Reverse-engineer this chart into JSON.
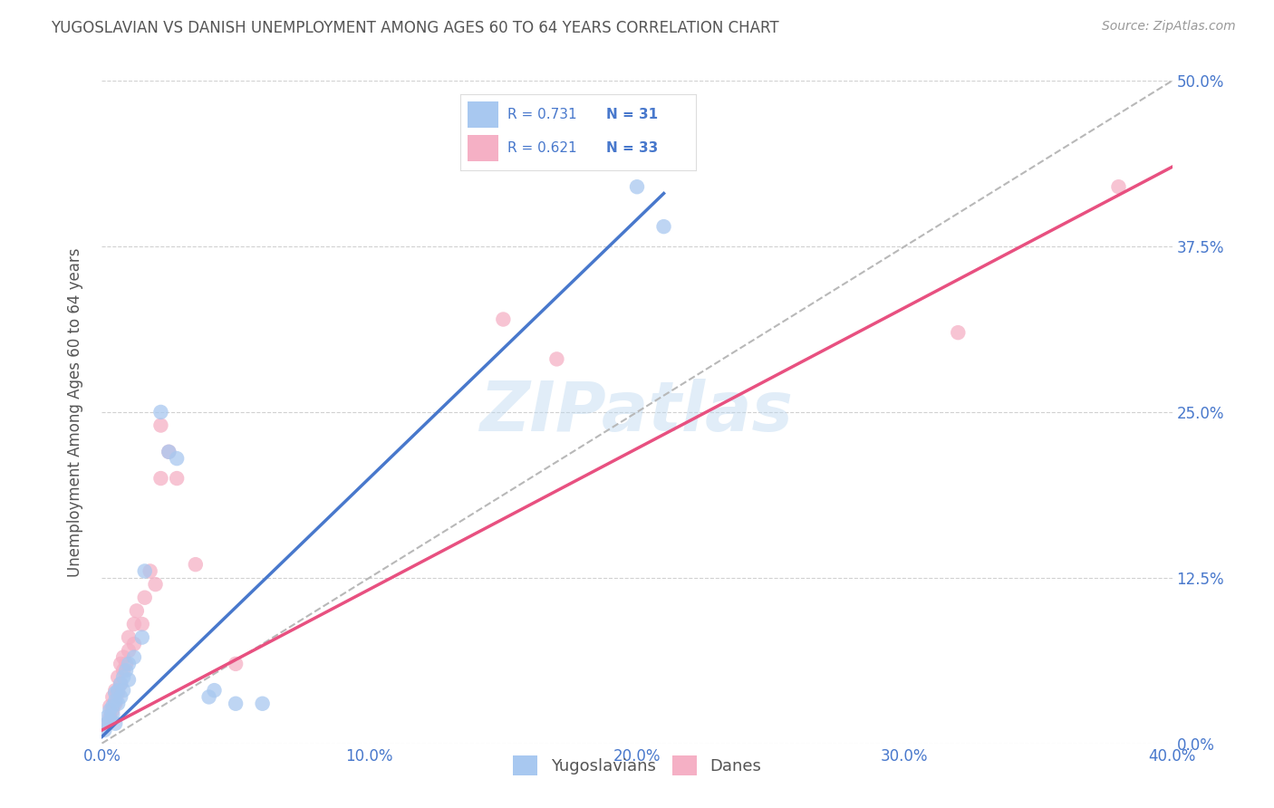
{
  "title": "YUGOSLAVIAN VS DANISH UNEMPLOYMENT AMONG AGES 60 TO 64 YEARS CORRELATION CHART",
  "source": "Source: ZipAtlas.com",
  "ylabel": "Unemployment Among Ages 60 to 64 years",
  "xlim": [
    0.0,
    0.4
  ],
  "ylim": [
    0.0,
    0.5
  ],
  "legend_label1": "Yugoslavians",
  "legend_label2": "Danes",
  "R1": 0.731,
  "N1": 31,
  "R2": 0.621,
  "N2": 33,
  "color_blue": "#a8c8f0",
  "color_pink": "#f5b0c5",
  "line_blue": "#4878cc",
  "line_pink": "#e85080",
  "line_dashed": "#b8b8b8",
  "bg_color": "#ffffff",
  "grid_color": "#cccccc",
  "text_color_blue": "#4878cc",
  "title_color": "#555555",
  "watermark": "ZIPatlas",
  "yug_points": [
    [
      0.001,
      0.01
    ],
    [
      0.002,
      0.015
    ],
    [
      0.002,
      0.02
    ],
    [
      0.003,
      0.018
    ],
    [
      0.003,
      0.025
    ],
    [
      0.004,
      0.022
    ],
    [
      0.004,
      0.028
    ],
    [
      0.005,
      0.015
    ],
    [
      0.005,
      0.032
    ],
    [
      0.005,
      0.038
    ],
    [
      0.006,
      0.03
    ],
    [
      0.006,
      0.04
    ],
    [
      0.007,
      0.035
    ],
    [
      0.007,
      0.045
    ],
    [
      0.008,
      0.04
    ],
    [
      0.008,
      0.05
    ],
    [
      0.009,
      0.055
    ],
    [
      0.01,
      0.048
    ],
    [
      0.01,
      0.06
    ],
    [
      0.012,
      0.065
    ],
    [
      0.015,
      0.08
    ],
    [
      0.016,
      0.13
    ],
    [
      0.022,
      0.25
    ],
    [
      0.025,
      0.22
    ],
    [
      0.028,
      0.215
    ],
    [
      0.04,
      0.035
    ],
    [
      0.042,
      0.04
    ],
    [
      0.05,
      0.03
    ],
    [
      0.06,
      0.03
    ],
    [
      0.2,
      0.42
    ],
    [
      0.21,
      0.39
    ]
  ],
  "dane_points": [
    [
      0.002,
      0.015
    ],
    [
      0.003,
      0.02
    ],
    [
      0.003,
      0.028
    ],
    [
      0.004,
      0.025
    ],
    [
      0.004,
      0.035
    ],
    [
      0.005,
      0.03
    ],
    [
      0.005,
      0.04
    ],
    [
      0.006,
      0.038
    ],
    [
      0.006,
      0.05
    ],
    [
      0.007,
      0.045
    ],
    [
      0.007,
      0.06
    ],
    [
      0.008,
      0.055
    ],
    [
      0.008,
      0.065
    ],
    [
      0.009,
      0.06
    ],
    [
      0.01,
      0.07
    ],
    [
      0.01,
      0.08
    ],
    [
      0.012,
      0.075
    ],
    [
      0.012,
      0.09
    ],
    [
      0.013,
      0.1
    ],
    [
      0.015,
      0.09
    ],
    [
      0.016,
      0.11
    ],
    [
      0.018,
      0.13
    ],
    [
      0.02,
      0.12
    ],
    [
      0.022,
      0.24
    ],
    [
      0.022,
      0.2
    ],
    [
      0.025,
      0.22
    ],
    [
      0.028,
      0.2
    ],
    [
      0.035,
      0.135
    ],
    [
      0.05,
      0.06
    ],
    [
      0.15,
      0.32
    ],
    [
      0.17,
      0.29
    ],
    [
      0.32,
      0.31
    ],
    [
      0.38,
      0.42
    ]
  ]
}
